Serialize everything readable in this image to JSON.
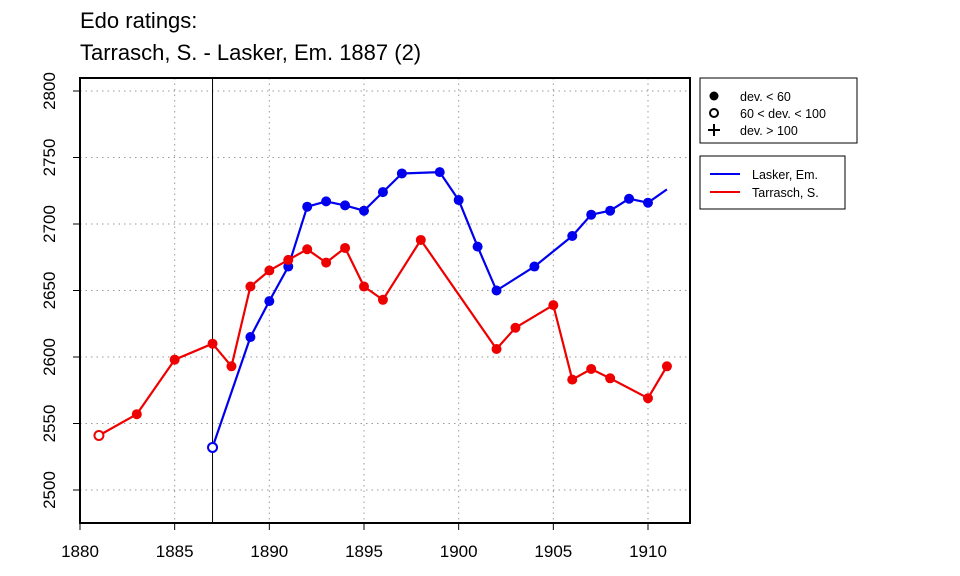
{
  "title": {
    "line1": "Edo ratings:",
    "line2": "Tarrasch, S. - Lasker, Em. 1887 (2)"
  },
  "legend_markers": [
    {
      "label": "dev. < 60",
      "marker": "filled-circle"
    },
    {
      "label": "60 < dev. < 100",
      "marker": "open-circle"
    },
    {
      "label": "dev. > 100",
      "marker": "plus"
    }
  ],
  "legend_series": [
    {
      "label": "Lasker, Em.",
      "color": "#0000ee"
    },
    {
      "label": "Tarrasch, S.",
      "color": "#ee0000"
    }
  ],
  "chart_data": {
    "type": "line",
    "title": "Edo ratings: Tarrasch, S. - Lasker, Em. 1887 (2)",
    "xlim": [
      1880,
      1912
    ],
    "ylim": [
      2490,
      2805
    ],
    "x_ticks": [
      1880,
      1885,
      1890,
      1895,
      1900,
      1905,
      1910
    ],
    "y_ticks": [
      2500,
      2550,
      2600,
      2650,
      2700,
      2750,
      2800
    ],
    "grid": true,
    "marker_line_x": 1887,
    "legend_position": "right",
    "series": [
      {
        "name": "Lasker, Em.",
        "color": "#0000ee",
        "points": [
          {
            "x": 1887,
            "y": 2532,
            "marker": "open"
          },
          {
            "x": 1889,
            "y": 2615,
            "marker": "filled"
          },
          {
            "x": 1890,
            "y": 2642,
            "marker": "filled"
          },
          {
            "x": 1891,
            "y": 2668,
            "marker": "filled"
          },
          {
            "x": 1892,
            "y": 2713,
            "marker": "filled"
          },
          {
            "x": 1893,
            "y": 2717,
            "marker": "filled"
          },
          {
            "x": 1894,
            "y": 2714,
            "marker": "filled"
          },
          {
            "x": 1895,
            "y": 2710,
            "marker": "filled"
          },
          {
            "x": 1896,
            "y": 2724,
            "marker": "filled"
          },
          {
            "x": 1897,
            "y": 2738,
            "marker": "filled"
          },
          {
            "x": 1899,
            "y": 2739,
            "marker": "filled"
          },
          {
            "x": 1900,
            "y": 2718,
            "marker": "filled"
          },
          {
            "x": 1901,
            "y": 2683,
            "marker": "filled"
          },
          {
            "x": 1902,
            "y": 2650,
            "marker": "filled"
          },
          {
            "x": 1904,
            "y": 2668,
            "marker": "filled"
          },
          {
            "x": 1906,
            "y": 2691,
            "marker": "filled"
          },
          {
            "x": 1907,
            "y": 2707,
            "marker": "filled"
          },
          {
            "x": 1908,
            "y": 2710,
            "marker": "filled"
          },
          {
            "x": 1909,
            "y": 2719,
            "marker": "filled"
          },
          {
            "x": 1910,
            "y": 2716,
            "marker": "filled"
          },
          {
            "x": 1911,
            "y": 2726,
            "marker": "none"
          }
        ]
      },
      {
        "name": "Tarrasch, S.",
        "color": "#ee0000",
        "points": [
          {
            "x": 1881,
            "y": 2541,
            "marker": "open"
          },
          {
            "x": 1883,
            "y": 2557,
            "marker": "filled"
          },
          {
            "x": 1885,
            "y": 2598,
            "marker": "filled"
          },
          {
            "x": 1887,
            "y": 2610,
            "marker": "filled"
          },
          {
            "x": 1888,
            "y": 2593,
            "marker": "filled"
          },
          {
            "x": 1889,
            "y": 2653,
            "marker": "filled"
          },
          {
            "x": 1890,
            "y": 2665,
            "marker": "filled"
          },
          {
            "x": 1891,
            "y": 2673,
            "marker": "filled"
          },
          {
            "x": 1892,
            "y": 2681,
            "marker": "filled"
          },
          {
            "x": 1893,
            "y": 2671,
            "marker": "filled"
          },
          {
            "x": 1894,
            "y": 2682,
            "marker": "filled"
          },
          {
            "x": 1895,
            "y": 2653,
            "marker": "filled"
          },
          {
            "x": 1896,
            "y": 2643,
            "marker": "filled"
          },
          {
            "x": 1898,
            "y": 2688,
            "marker": "filled"
          },
          {
            "x": 1902,
            "y": 2606,
            "marker": "filled"
          },
          {
            "x": 1903,
            "y": 2622,
            "marker": "filled"
          },
          {
            "x": 1905,
            "y": 2639,
            "marker": "filled"
          },
          {
            "x": 1906,
            "y": 2583,
            "marker": "filled"
          },
          {
            "x": 1907,
            "y": 2591,
            "marker": "filled"
          },
          {
            "x": 1908,
            "y": 2584,
            "marker": "filled"
          },
          {
            "x": 1910,
            "y": 2569,
            "marker": "filled"
          },
          {
            "x": 1911,
            "y": 2593,
            "marker": "filled"
          }
        ]
      }
    ]
  }
}
